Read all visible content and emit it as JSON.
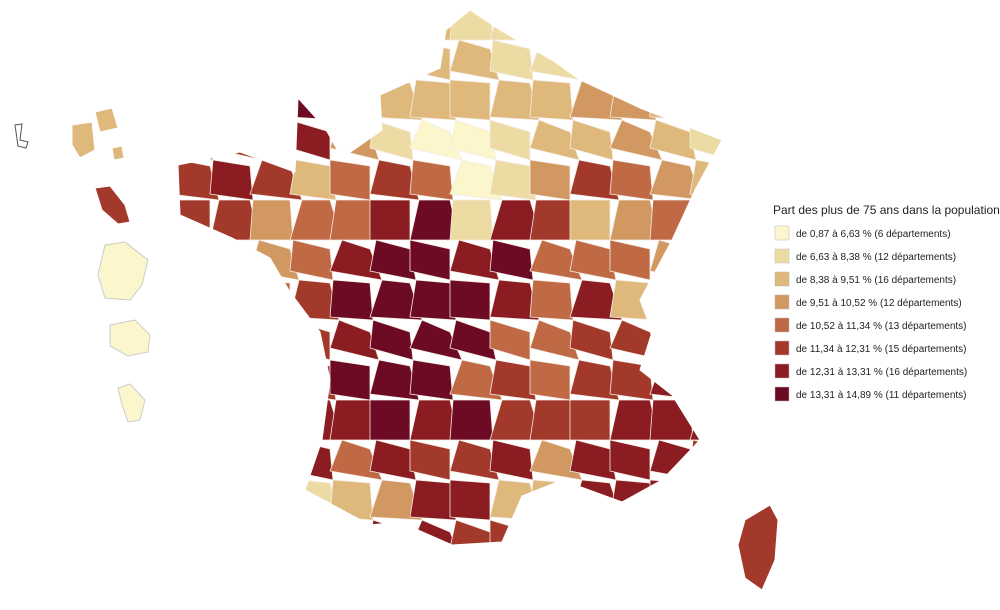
{
  "legend": {
    "title": "Part des plus de 75 ans dans la population",
    "items": [
      {
        "label": "de 0,87 à 6,63 % (6 départements)",
        "color": "#fbf6cc"
      },
      {
        "label": "de 6,63 à 8,38 % (12 départements)",
        "color": "#ecdca3"
      },
      {
        "label": "de 8,38 à 9,51 % (16 départements)",
        "color": "#dfb87b"
      },
      {
        "label": "de 9,51 à 10,52 % (12 départements)",
        "color": "#d29862"
      },
      {
        "label": "de 10,52 à 11,34 % (13 départements)",
        "color": "#bf6a45"
      },
      {
        "label": "de 11,34 à 12,31 % (15 départements)",
        "color": "#a3392b"
      },
      {
        "label": "de 12,31 à 13,31 % (16 départements)",
        "color": "#8a1c22"
      },
      {
        "label": "de 13,31 à 14,89 % (11 départements)",
        "color": "#6d0b25"
      }
    ]
  }
}
